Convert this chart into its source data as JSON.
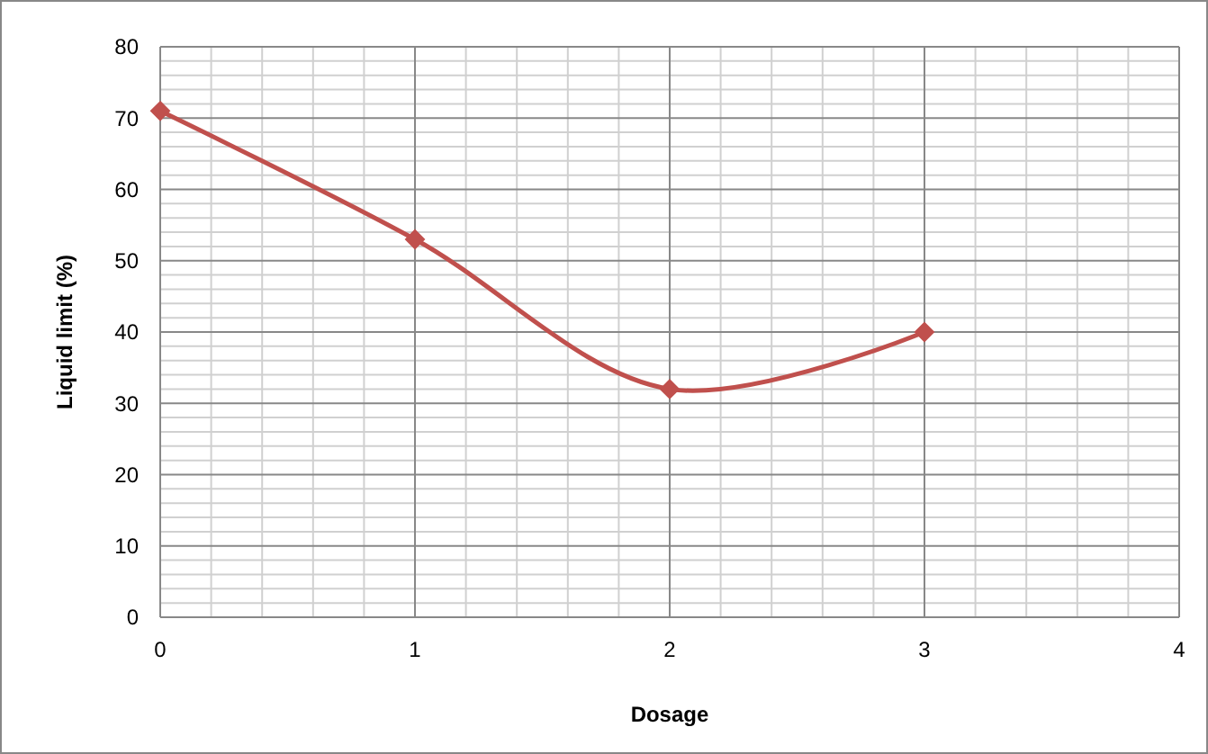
{
  "chart_data": {
    "type": "line",
    "xlabel": "Dosage",
    "ylabel": "Liquid limit (%)",
    "x": [
      0,
      1,
      2,
      3
    ],
    "series": [
      {
        "color": "#c0504d",
        "values": [
          71,
          53,
          32,
          40
        ]
      }
    ],
    "xlim": [
      0,
      4
    ],
    "xticks": [
      0,
      1,
      2,
      3,
      4
    ],
    "ylim": [
      0,
      80
    ],
    "yticks": [
      0,
      10,
      20,
      30,
      40,
      50,
      60,
      70,
      80
    ],
    "grid": true,
    "marker": "diamond",
    "line_style": "solid"
  }
}
